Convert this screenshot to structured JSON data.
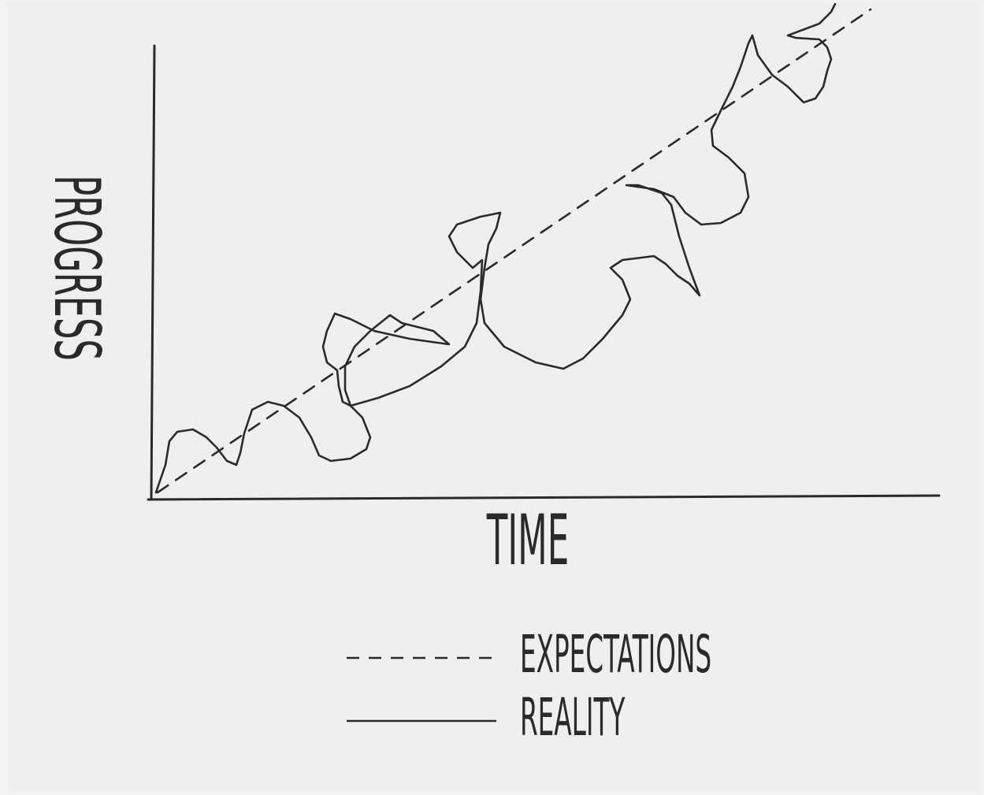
{
  "chart_data": {
    "type": "line",
    "x_label": "TIME",
    "y_label": "PROGRESS",
    "xlim": [
      0,
      100
    ],
    "ylim": [
      0,
      63
    ],
    "legend": "bottom",
    "series": [
      {
        "name": "EXPECTATIONS",
        "color": "#2a2a2a",
        "style": "dashed",
        "x": [
          1.0,
          91.5
        ],
        "values": [
          0.7,
          62.0
        ]
      },
      {
        "name": "REALITY",
        "color": "#2a2a2a",
        "style": "solid",
        "x": [
          0.8,
          2.0,
          2.5,
          3.5,
          5.5,
          7.2,
          8.5,
          9.8,
          11.0,
          11.5,
          12.0,
          13.0,
          15.0,
          17.0,
          19.0,
          20.5,
          21.5,
          23.0,
          25.5,
          27.5,
          28.0,
          27.0,
          25.5,
          24.5,
          24.0,
          23.8,
          22.5,
          22.0,
          22.5,
          23.5,
          25.5,
          28.5,
          33.0,
          38.0,
          36.0,
          32.0,
          30.5,
          28.0,
          26.0,
          24.8,
          24.8,
          25.5,
          29.0,
          33.0,
          37.0,
          40.0,
          41.5,
          42.0,
          42.2,
          41.0,
          39.0,
          38.0,
          39.0,
          42.0,
          44.5,
          44.0,
          43.0,
          42.5,
          42.0,
          42.5,
          45.0,
          49.0,
          52.5,
          55.0,
          57.5,
          60.0,
          61.0,
          60.0,
          58.5,
          60.0,
          64.0,
          65.5,
          67.0,
          68.5,
          69.8,
          68.5,
          67.2,
          66.2,
          65.0,
          62.0,
          60.5,
          64.0,
          66.5,
          68.0,
          70.0,
          72.5,
          75.0,
          76.0,
          75.5,
          73.5,
          71.5,
          71.3,
          72.5,
          74.0,
          75.0,
          76.0,
          76.5,
          77.2,
          79.0,
          81.0,
          83.0,
          84.5,
          85.5,
          86.0,
          86.5,
          86.0,
          85.0,
          82.0,
          81.0,
          85.0,
          86.5,
          87.0
        ],
        "values": [
          0.7,
          4.2,
          7.2,
          8.4,
          8.7,
          7.7,
          6.4,
          4.7,
          4.2,
          5.7,
          8.2,
          11.2,
          12.2,
          11.7,
          10.2,
          7.7,
          5.4,
          4.7,
          5.0,
          6.2,
          7.7,
          10.2,
          11.7,
          12.2,
          14.2,
          16.2,
          17.2,
          19.2,
          21.2,
          23.4,
          22.7,
          21.2,
          20.2,
          19.5,
          21.2,
          22.2,
          23.2,
          21.2,
          19.2,
          16.7,
          13.7,
          11.7,
          12.7,
          14.2,
          16.7,
          19.2,
          22.2,
          26.2,
          30.2,
          29.2,
          31.2,
          33.2,
          34.7,
          35.7,
          36.2,
          34.2,
          32.2,
          29.2,
          25.2,
          22.2,
          19.2,
          17.2,
          16.4,
          17.7,
          20.2,
          23.2,
          25.2,
          27.7,
          29.2,
          30.2,
          30.7,
          29.7,
          28.2,
          27.2,
          25.7,
          29.2,
          33.2,
          37.2,
          38.7,
          39.7,
          39.7,
          39.2,
          38.2,
          36.2,
          34.7,
          34.9,
          36.2,
          38.2,
          41.2,
          43.2,
          44.7,
          46.7,
          49.2,
          52.2,
          54.7,
          57.7,
          58.7,
          56.2,
          53.7,
          52.2,
          50.2,
          50.7,
          52.2,
          54.2,
          55.7,
          57.2,
          58.2,
          58.4,
          58.7,
          60.2,
          61.7,
          62.7
        ]
      }
    ]
  }
}
